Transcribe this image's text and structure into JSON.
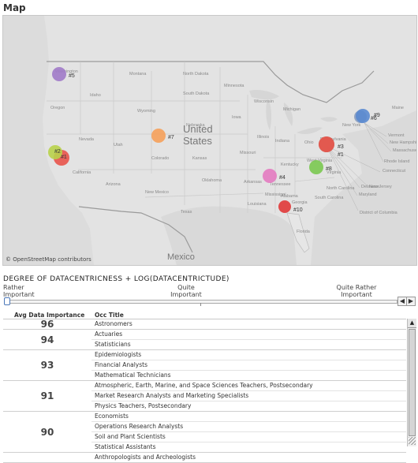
{
  "map": {
    "title": "Map",
    "attribution": "© OpenStreetMap contributors",
    "country_labels": [
      "United",
      "States",
      "Mexico"
    ],
    "state_labels": [
      {
        "text": "Washington"
      },
      {
        "text": "Oregon"
      },
      {
        "text": "Idaho"
      },
      {
        "text": "Montana"
      },
      {
        "text": "North Dakota"
      },
      {
        "text": "South Dakota"
      },
      {
        "text": "Minnesota"
      },
      {
        "text": "Wyoming"
      },
      {
        "text": "Nebraska"
      },
      {
        "text": "Iowa"
      },
      {
        "text": "Nevada"
      },
      {
        "text": "Utah"
      },
      {
        "text": "Colorado"
      },
      {
        "text": "Kansas"
      },
      {
        "text": "Missouri"
      },
      {
        "text": "California"
      },
      {
        "text": "Arizona"
      },
      {
        "text": "New Mexico"
      },
      {
        "text": "Oklahoma"
      },
      {
        "text": "Arkansas"
      },
      {
        "text": "Texas"
      },
      {
        "text": "Louisiana"
      },
      {
        "text": "Mississippi"
      },
      {
        "text": "Alabama"
      },
      {
        "text": "Georgia"
      },
      {
        "text": "Tennessee"
      },
      {
        "text": "Kentucky"
      },
      {
        "text": "Illinois"
      },
      {
        "text": "Indiana"
      },
      {
        "text": "Ohio"
      },
      {
        "text": "Michigan"
      },
      {
        "text": "Wisconsin"
      },
      {
        "text": "Pennsylvania"
      },
      {
        "text": "New York"
      },
      {
        "text": "Virginia"
      },
      {
        "text": "North Carolina"
      },
      {
        "text": "South Carolina"
      },
      {
        "text": "Florida"
      },
      {
        "text": "Maine"
      },
      {
        "text": "Vermont"
      },
      {
        "text": "New Hampshire"
      },
      {
        "text": "Massachusetts"
      },
      {
        "text": "Rhode Island"
      },
      {
        "text": "Connecticut"
      },
      {
        "text": "New Jersey"
      },
      {
        "text": "Delaware"
      },
      {
        "text": "Maryland"
      },
      {
        "text": "District of Columbia"
      },
      {
        "text": "West Virginia"
      }
    ],
    "markers": [
      {
        "label": "#1",
        "color": "#e8534a"
      },
      {
        "label": "#2",
        "color": "#b8d24a"
      },
      {
        "label": "#3",
        "color": "#a88070"
      },
      {
        "label": "#4",
        "color": "#e37ac0"
      },
      {
        "label": "#5",
        "color": "#a07ac8"
      },
      {
        "label": "#6",
        "color": "#8a9dbf"
      },
      {
        "label": "#7",
        "color": "#f5a05a"
      },
      {
        "label": "#8",
        "color": "#7ac850"
      },
      {
        "label": "#9",
        "color": "#5a8ad0"
      },
      {
        "label": "#10",
        "color": "#e03838"
      },
      {
        "label": "#1",
        "color": "#e8534a"
      }
    ]
  },
  "slider": {
    "title": "DEGREE OF DATACENTRICNESS + LOG(DATACENTRICTUDE)",
    "label_left": "Rather\nImportant",
    "label_mid": "Quite\nImportant",
    "label_right": "Quite Rather\nImportant",
    "prev_icon": "◀",
    "next_icon": "▶"
  },
  "table": {
    "header_importance": "Avg Data Importance",
    "header_occupation": "Occ Title",
    "groups": [
      {
        "importance": "96",
        "occupations": [
          "Astronomers"
        ]
      },
      {
        "importance": "94",
        "occupations": [
          "Actuaries",
          "Statisticians"
        ]
      },
      {
        "importance": "93",
        "occupations": [
          "Epidemiologists",
          "Financial Analysts",
          "Mathematical Technicians"
        ]
      },
      {
        "importance": "91",
        "occupations": [
          "Atmospheric, Earth, Marine, and Space Sciences Teachers, Postsecondary",
          "Market Research Analysts and Marketing Specialists",
          "Physics Teachers, Postsecondary"
        ]
      },
      {
        "importance": "90",
        "occupations": [
          "Economists",
          "Operations Research Analysts",
          "Soil and Plant Scientists",
          "Statistical Assistants"
        ]
      },
      {
        "importance": "",
        "occupations": [
          "Anthropologists and Archeologists"
        ]
      }
    ]
  },
  "scrollbar": {
    "up_icon": "▲"
  }
}
